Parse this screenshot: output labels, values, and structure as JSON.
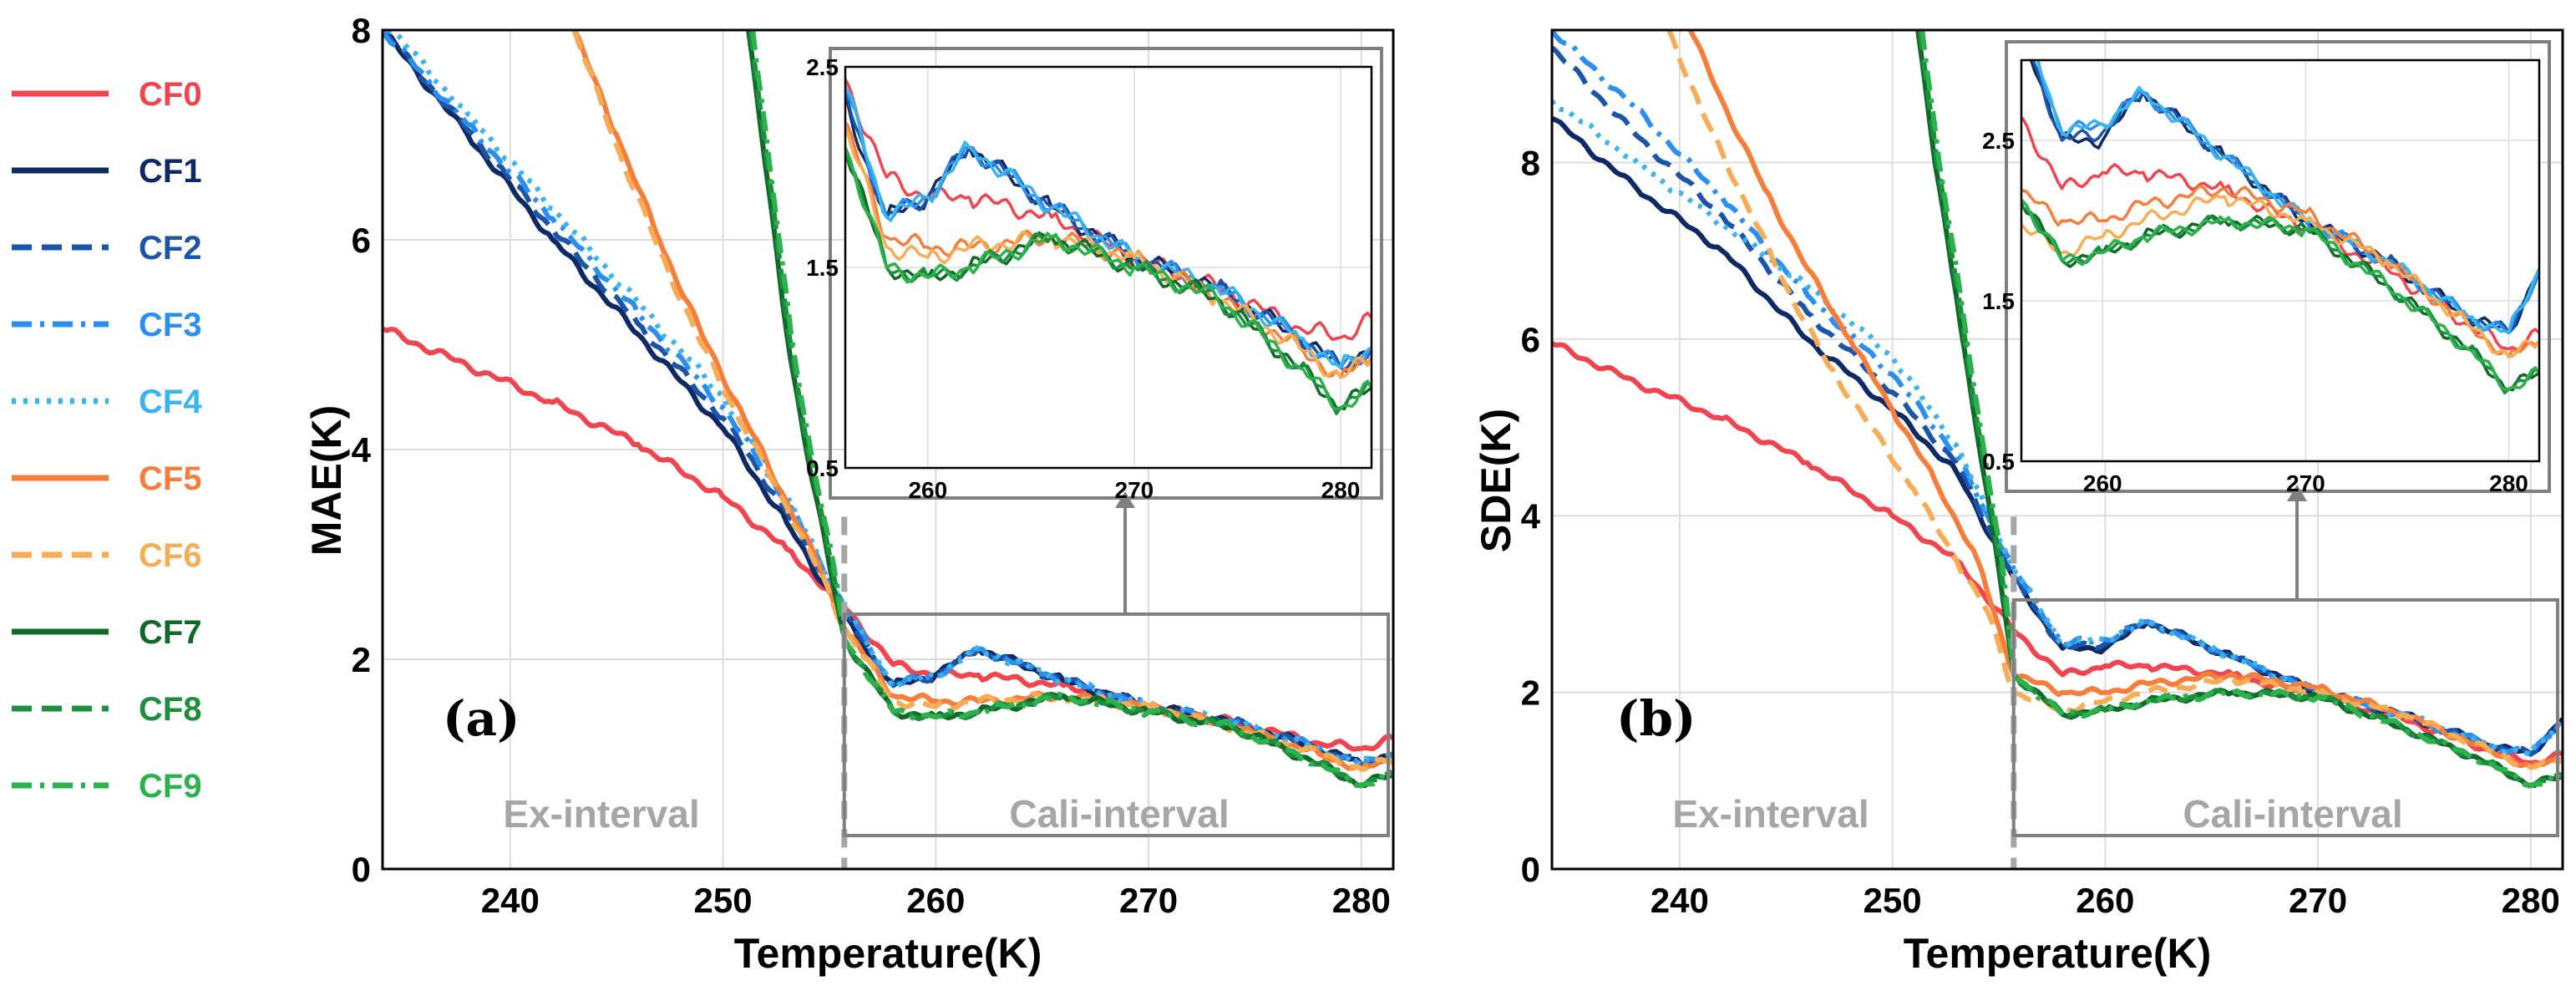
{
  "legend": [
    {
      "name": "CF0",
      "color": "#f0454f",
      "dash": "solid"
    },
    {
      "name": "CF1",
      "color": "#0e2a66",
      "dash": "solid"
    },
    {
      "name": "CF2",
      "color": "#1a55a8",
      "dash": "dashed"
    },
    {
      "name": "CF3",
      "color": "#2b8ff0",
      "dash": "dashdot"
    },
    {
      "name": "CF4",
      "color": "#3ab4ee",
      "dash": "dotted"
    },
    {
      "name": "CF5",
      "color": "#f77d3a",
      "dash": "solid"
    },
    {
      "name": "CF6",
      "color": "#f8ad55",
      "dash": "dashed"
    },
    {
      "name": "CF7",
      "color": "#0f6a2a",
      "dash": "solid"
    },
    {
      "name": "CF8",
      "color": "#1b8f3c",
      "dash": "dashed"
    },
    {
      "name": "CF9",
      "color": "#2cb24c",
      "dash": "dashdot"
    }
  ],
  "labels": {
    "xlabel": "Temperature(K)",
    "ex_interval": "Ex-interval",
    "cali_interval": "Cali-interval"
  },
  "chart_data": [
    {
      "type": "line",
      "panel": "(a)",
      "ylabel": "MAE(K)",
      "xlabel": "Temperature(K)",
      "xlim": [
        234,
        281.5
      ],
      "ylim": [
        0,
        8
      ],
      "xticks": [
        240,
        250,
        260,
        270,
        280
      ],
      "yticks": [
        0,
        2,
        4,
        6,
        8
      ],
      "split_x": 255.7,
      "inset": {
        "xlim": [
          256,
          281.5
        ],
        "ylim": [
          0.5,
          2.5
        ],
        "xticks": [
          260,
          270,
          280
        ],
        "yticks": [
          0.5,
          1.5,
          2.5
        ]
      },
      "series": [
        {
          "name": "CF0",
          "x": [
            234,
            238,
            242,
            246,
            250,
            253,
            255.7,
            258,
            260,
            262,
            266,
            270,
            274,
            278,
            280,
            281.5
          ],
          "y": [
            5.15,
            4.8,
            4.45,
            4.05,
            3.55,
            3.05,
            2.5,
            1.95,
            1.85,
            1.85,
            1.75,
            1.55,
            1.4,
            1.2,
            1.15,
            1.25
          ]
        },
        {
          "name": "CF1",
          "x": [
            234,
            238,
            242,
            246,
            250,
            253,
            255.7,
            258,
            260,
            262,
            266,
            270,
            274,
            278,
            280,
            281.5
          ],
          "y": [
            8.0,
            7.0,
            6.0,
            5.1,
            4.2,
            3.3,
            2.4,
            1.75,
            1.85,
            2.1,
            1.8,
            1.55,
            1.4,
            1.15,
            1.0,
            1.1
          ]
        },
        {
          "name": "CF2",
          "x": [
            234,
            238,
            242,
            246,
            250,
            253,
            255.7,
            258,
            260,
            262,
            266,
            270,
            274,
            278,
            280,
            281.5
          ],
          "y": [
            8.0,
            7.05,
            6.1,
            5.2,
            4.3,
            3.4,
            2.45,
            1.75,
            1.85,
            2.1,
            1.8,
            1.55,
            1.4,
            1.15,
            1.0,
            1.1
          ]
        },
        {
          "name": "CF3",
          "x": [
            234,
            238,
            242,
            246,
            250,
            253,
            255.7,
            258,
            260,
            262,
            266,
            270,
            274,
            278,
            280,
            281.5
          ],
          "y": [
            8.0,
            7.1,
            6.2,
            5.3,
            4.4,
            3.5,
            2.5,
            1.75,
            1.85,
            2.1,
            1.8,
            1.55,
            1.4,
            1.15,
            1.0,
            1.1
          ]
        },
        {
          "name": "CF4",
          "x": [
            234,
            238,
            242,
            246,
            250,
            253,
            255.7,
            258,
            260,
            262,
            266,
            270,
            274,
            278,
            280,
            281.5
          ],
          "y": [
            8.1,
            7.2,
            6.3,
            5.4,
            4.5,
            3.55,
            2.5,
            1.75,
            1.85,
            2.1,
            1.8,
            1.55,
            1.4,
            1.15,
            1.0,
            1.1
          ]
        },
        {
          "name": "CF5",
          "x": [
            243,
            245,
            247,
            249,
            251,
            253,
            254.5,
            255.7,
            258,
            260,
            262,
            266,
            270,
            274,
            278,
            280,
            281.5
          ],
          "y": [
            8.0,
            7.0,
            6.0,
            5.1,
            4.3,
            3.5,
            2.9,
            2.3,
            1.65,
            1.6,
            1.6,
            1.65,
            1.55,
            1.35,
            1.1,
            0.95,
            1.05
          ]
        },
        {
          "name": "CF6",
          "x": [
            243,
            245,
            247,
            249,
            251,
            253,
            254.5,
            255.7,
            258,
            260,
            262,
            266,
            270,
            274,
            278,
            280,
            281.5
          ],
          "y": [
            8.0,
            6.9,
            5.9,
            5.0,
            4.2,
            3.45,
            2.85,
            2.3,
            1.6,
            1.55,
            1.6,
            1.65,
            1.55,
            1.35,
            1.1,
            0.95,
            1.05
          ]
        },
        {
          "name": "CF7",
          "x": [
            251.2,
            252,
            253,
            254,
            255,
            255.7,
            258,
            260,
            262,
            266,
            270,
            274,
            278,
            280,
            281.5
          ],
          "y": [
            8.0,
            6.7,
            5.1,
            3.9,
            2.9,
            2.2,
            1.5,
            1.45,
            1.5,
            1.65,
            1.5,
            1.35,
            1.0,
            0.8,
            0.9
          ]
        },
        {
          "name": "CF8",
          "x": [
            251.3,
            252.1,
            253.1,
            254.1,
            255.1,
            255.7,
            258,
            260,
            262,
            266,
            270,
            274,
            278,
            280,
            281.5
          ],
          "y": [
            8.0,
            6.7,
            5.1,
            3.9,
            2.9,
            2.2,
            1.5,
            1.45,
            1.5,
            1.65,
            1.5,
            1.35,
            1.0,
            0.8,
            0.9
          ]
        },
        {
          "name": "CF9",
          "x": [
            251.4,
            252.2,
            253.2,
            254.2,
            255.2,
            255.7,
            258,
            260,
            262,
            266,
            270,
            274,
            278,
            280,
            281.5
          ],
          "y": [
            8.0,
            6.7,
            5.1,
            3.9,
            2.9,
            2.2,
            1.5,
            1.45,
            1.5,
            1.65,
            1.5,
            1.35,
            1.0,
            0.8,
            0.9
          ]
        }
      ]
    },
    {
      "type": "line",
      "panel": "(b)",
      "ylabel": "SDE(K)",
      "xlabel": "Temperature(K)",
      "xlim": [
        234,
        281.5
      ],
      "ylim": [
        0,
        9.5
      ],
      "xticks": [
        240,
        250,
        260,
        270,
        280
      ],
      "yticks": [
        0,
        2,
        4,
        6,
        8
      ],
      "split_x": 255.7,
      "inset": {
        "xlim": [
          256,
          281.5
        ],
        "ylim": [
          0.5,
          3.0
        ],
        "xticks": [
          260,
          270,
          280
        ],
        "yticks": [
          0.5,
          1.5,
          2.5
        ]
      },
      "series": [
        {
          "name": "CF0",
          "x": [
            234,
            238,
            242,
            246,
            250,
            253,
            255.7,
            258,
            260,
            262,
            266,
            270,
            274,
            278,
            280,
            281.5
          ],
          "y": [
            5.95,
            5.5,
            5.1,
            4.6,
            4.0,
            3.5,
            2.7,
            2.2,
            2.3,
            2.3,
            2.2,
            1.95,
            1.7,
            1.35,
            1.2,
            1.3
          ]
        },
        {
          "name": "CF1",
          "x": [
            234,
            238,
            242,
            246,
            250,
            253,
            255.7,
            258,
            260,
            262,
            266,
            270,
            274,
            278,
            280,
            281.5
          ],
          "y": [
            8.5,
            7.7,
            7.0,
            6.0,
            5.2,
            4.5,
            3.3,
            2.5,
            2.5,
            2.8,
            2.4,
            2.0,
            1.75,
            1.4,
            1.3,
            1.7
          ]
        },
        {
          "name": "CF2",
          "x": [
            234,
            238,
            242,
            246,
            250,
            253,
            255.7,
            258,
            260,
            262,
            266,
            270,
            274,
            278,
            280,
            281.5
          ],
          "y": [
            9.3,
            8.3,
            7.4,
            6.3,
            5.4,
            4.6,
            3.3,
            2.5,
            2.55,
            2.8,
            2.4,
            2.0,
            1.75,
            1.4,
            1.3,
            1.7
          ]
        },
        {
          "name": "CF3",
          "x": [
            234,
            238,
            242,
            246,
            250,
            253,
            255.7,
            258,
            260,
            262,
            266,
            270,
            274,
            278,
            280,
            281.5
          ],
          "y": [
            9.5,
            8.6,
            7.6,
            6.5,
            5.6,
            4.7,
            3.4,
            2.55,
            2.6,
            2.8,
            2.4,
            2.0,
            1.75,
            1.4,
            1.3,
            1.7
          ]
        },
        {
          "name": "CF4",
          "x": [
            234,
            238,
            242,
            246,
            250,
            253,
            255.7,
            258,
            260,
            262,
            266,
            270,
            274,
            278,
            280,
            281.5
          ],
          "y": [
            8.7,
            8.0,
            7.3,
            6.6,
            5.8,
            4.8,
            3.4,
            2.55,
            2.6,
            2.8,
            2.4,
            2.0,
            1.75,
            1.4,
            1.3,
            1.7
          ]
        },
        {
          "name": "CF5",
          "x": [
            240.5,
            242,
            244,
            246,
            248,
            250,
            252,
            254,
            255.7,
            258,
            260,
            262,
            266,
            270,
            274,
            278,
            280,
            281.5
          ],
          "y": [
            9.5,
            8.7,
            7.7,
            6.8,
            6.0,
            5.2,
            4.4,
            3.5,
            2.2,
            2.0,
            2.0,
            2.1,
            2.2,
            2.05,
            1.75,
            1.35,
            1.15,
            1.25
          ]
        },
        {
          "name": "CF6",
          "x": [
            239.5,
            241,
            243,
            245,
            247,
            249,
            251,
            253,
            254.5,
            255.7,
            258,
            260,
            262,
            266,
            270,
            274,
            278,
            280,
            281.5
          ],
          "y": [
            9.5,
            8.6,
            7.6,
            6.6,
            5.7,
            5.0,
            4.3,
            3.5,
            2.9,
            2.0,
            1.8,
            1.9,
            2.0,
            2.15,
            2.0,
            1.75,
            1.35,
            1.15,
            1.25
          ]
        },
        {
          "name": "CF7",
          "x": [
            251.2,
            252,
            253,
            254,
            255,
            255.7,
            258,
            260,
            262,
            266,
            270,
            274,
            278,
            280,
            281.5
          ],
          "y": [
            9.5,
            8.0,
            6.5,
            4.9,
            3.4,
            2.2,
            1.75,
            1.8,
            1.9,
            2.0,
            1.95,
            1.6,
            1.2,
            0.95,
            1.05
          ]
        },
        {
          "name": "CF8",
          "x": [
            251.3,
            252.1,
            253.1,
            254.1,
            255.1,
            255.7,
            258,
            260,
            262,
            266,
            270,
            274,
            278,
            280,
            281.5
          ],
          "y": [
            9.5,
            8.0,
            6.5,
            4.9,
            3.4,
            2.2,
            1.75,
            1.8,
            1.9,
            2.0,
            1.95,
            1.6,
            1.2,
            0.95,
            1.05
          ]
        },
        {
          "name": "CF9",
          "x": [
            251.4,
            252.2,
            253.2,
            254.2,
            255.2,
            255.7,
            258,
            260,
            262,
            266,
            270,
            274,
            278,
            280,
            281.5
          ],
          "y": [
            9.5,
            8.0,
            6.5,
            4.9,
            3.4,
            2.2,
            1.75,
            1.8,
            1.9,
            2.0,
            1.95,
            1.6,
            1.2,
            0.95,
            1.05
          ]
        }
      ]
    }
  ]
}
